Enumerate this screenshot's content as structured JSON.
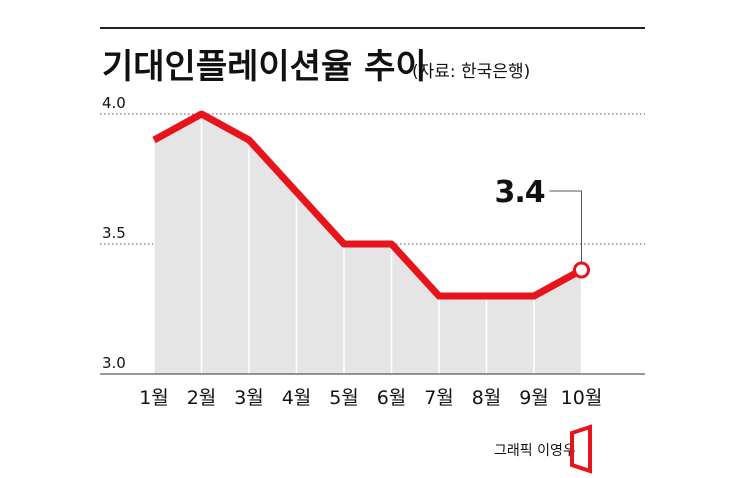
{
  "title": "기대인플레이션율 추이",
  "source": "(자료: 한국은행)",
  "credit": "그래픽 이영우",
  "colors": {
    "line": "#e8141c",
    "area": "#e5e5e5",
    "grid": "#555555",
    "text": "#111111"
  },
  "chart_data": {
    "type": "area",
    "categories": [
      "1월",
      "2월",
      "3월",
      "4월",
      "5월",
      "6월",
      "7월",
      "8월",
      "9월",
      "10월"
    ],
    "values": [
      3.9,
      4.0,
      3.9,
      3.7,
      3.5,
      3.5,
      3.3,
      3.3,
      3.3,
      3.4
    ],
    "ylim": [
      3.0,
      4.0
    ],
    "yticks": [
      "3.0",
      "3.5",
      "4.0"
    ],
    "grid": true,
    "annotation": {
      "index": 9,
      "label": "3.4"
    }
  }
}
